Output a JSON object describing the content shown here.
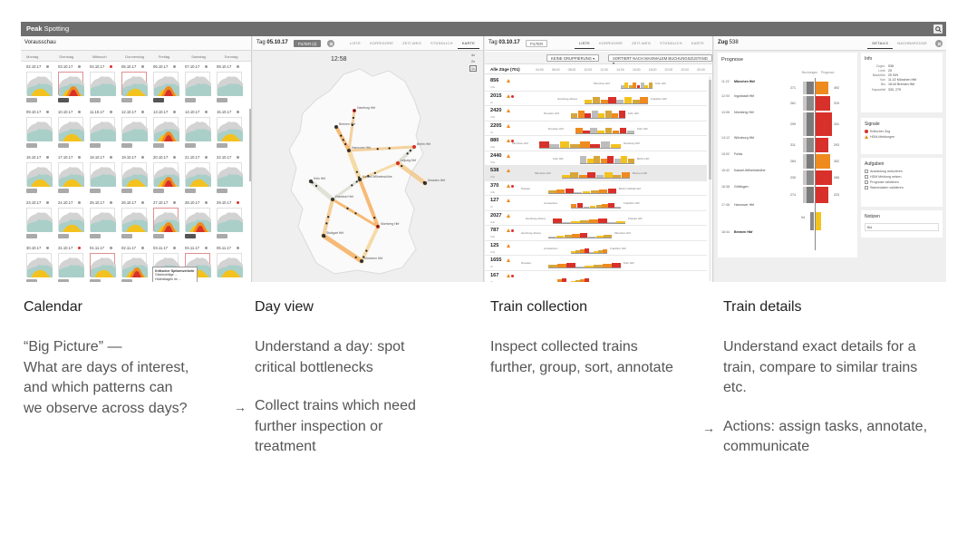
{
  "app": {
    "brand_bold": "Peak",
    "brand_rest": " Spotting"
  },
  "calendar": {
    "title": "Vorausschau",
    "weekdays": [
      "Montag",
      "Dienstag",
      "Mittwoch",
      "Donnerstag",
      "Freitag",
      "Samstag",
      "Sonntag"
    ],
    "weeks": [
      [
        "02.10.17",
        "03.10.17",
        "04.10.17",
        "05.10.17",
        "06.10.17",
        "07.10.17",
        "08.10.17"
      ],
      [
        "09.10.17",
        "10.10.17",
        "11.10.17",
        "12.10.17",
        "13.10.17",
        "14.10.17",
        "15.10.17"
      ],
      [
        "16.10.17",
        "17.10.17",
        "18.10.17",
        "19.10.17",
        "20.10.17",
        "21.10.17",
        "22.10.17"
      ],
      [
        "23.10.17",
        "24.10.17",
        "25.10.17",
        "26.10.17",
        "27.10.17",
        "28.10.17",
        "29.10.17"
      ],
      [
        "30.10.17",
        "31.10.17",
        "01.11.17",
        "02.11.17",
        "03.11.17",
        "04.11.17",
        "05.11.17"
      ]
    ],
    "tooltip_title": "Kritischer Spitzenverkehr",
    "tooltip_body": "Gleichzeitige ... Höchstlagen im ..."
  },
  "day_view": {
    "title_prefix": "Tag",
    "date": "05.10.17",
    "filter_label": "FILTER (2)",
    "tabs": [
      "LISTE",
      "KORRIDORE",
      "ZEIT-WEG",
      "STÜNDLICH",
      "KARTE"
    ],
    "active_tab": "KARTE",
    "time": "12:58",
    "zoom": [
      "4x",
      "2x",
      "1x"
    ],
    "cities": [
      "Hamburg Hbf",
      "Bremen Hbf",
      "Hannover Hbf",
      "Berlin Hbf",
      "Köln Hbf",
      "Frankfurt Hbf",
      "Nürnberg Hbf",
      "München Hbf",
      "Dresden Hbf",
      "Leipzig Hbf",
      "Stuttgart Hbf",
      "Kassel-Wilhelmshöhe"
    ]
  },
  "collection": {
    "title_prefix": "Tag",
    "date": "03.10.17",
    "filter_label": "FILTER",
    "tabs": [
      "LISTE",
      "KORRIDORE",
      "ZEIT-WEG",
      "STÜNDLICH",
      "KARTE"
    ],
    "active_tab": "LISTE",
    "group_label": "KEINE GRUPPIERUNG ▾",
    "sort_label": "SORTIERT NACH MAXIMALEM BUCHUNGSZUSTAND ▾",
    "all_label": "Alle Züge (701)",
    "axis": [
      "04:00",
      "06:00",
      "08:00",
      "10:00",
      "12:00",
      "14:00",
      "16:00",
      "18:00",
      "20:00",
      "22:00",
      "00:00"
    ],
    "trains": [
      {
        "no": "856",
        "sub": "ICE",
        "from": "München Hbf",
        "to": "Köln Hbf"
      },
      {
        "no": "2015",
        "sub": "IC",
        "from": "Hamburg-Altona",
        "to": "Frankfurt Hbf"
      },
      {
        "no": "2420",
        "sub": "ICE",
        "from": "Dresden Hbf",
        "to": "Köln Hbf"
      },
      {
        "no": "2205",
        "sub": "IC",
        "from": "Dresden Hbf",
        "to": "Köln Hbf"
      },
      {
        "no": "880",
        "sub": "ICE",
        "from": "München Hbf",
        "to": "Hamburg Hbf"
      },
      {
        "no": "2440",
        "sub": "ICE",
        "from": "Köln Hbf",
        "to": "Berlin Hbf"
      },
      {
        "no": "538",
        "sub": "ICE",
        "from": "München Hbf",
        "to": "Bremen Hbf"
      },
      {
        "no": "370",
        "sub": "ICE",
        "from": "Passau",
        "to": "Berlin Ostbahnhof"
      },
      {
        "no": "127",
        "sub": "IC",
        "from": "Amsterdam",
        "to": "Frankfurt Hbf"
      },
      {
        "no": "2027",
        "sub": "ICE",
        "from": "Hamburg-Altona",
        "to": "Passau Hbf"
      },
      {
        "no": "787",
        "sub": "ICE",
        "from": "Hamburg-Altona",
        "to": "München Hbf"
      },
      {
        "no": "125",
        "sub": "ICE",
        "from": "Amsterdam",
        "to": "Frankfurt Hbf"
      },
      {
        "no": "1655",
        "sub": "IC",
        "from": "Dresden",
        "to": "Köln Hbf"
      },
      {
        "no": "167",
        "sub": "IC",
        "from": "",
        "to": ""
      }
    ]
  },
  "details": {
    "title_prefix": "Zug",
    "train": "538",
    "tabs": [
      "DETAILS",
      "NACHBARZÜGE"
    ],
    "active_tab": "DETAILS",
    "prognose": "Prognose",
    "legend_left": "Buchungen",
    "legend_right": "Prognose",
    "stations": [
      {
        "t": "11:22",
        "name": "München Hbf",
        "bold": true
      },
      {
        "t": "12:00",
        "name": "Ingolstadt Hbf",
        "bold": false
      },
      {
        "t": "13:06",
        "name": "Nürnberg Hbf",
        "bold": false
      },
      {
        "t": "14:12",
        "name": "Würzburg Hbf",
        "bold": false
      },
      {
        "t": "15:02",
        "name": "Fulda",
        "bold": false
      },
      {
        "t": "15:42",
        "name": "Kassel-Wilhelmshöhe",
        "bold": false
      },
      {
        "t": "16:38",
        "name": "Göttingen",
        "bold": false
      },
      {
        "t": "17:46",
        "name": "Hannover Hbf",
        "bold": false
      },
      {
        "t": "18:44",
        "name": "Bremen Hbf",
        "bold": true
      }
    ],
    "left_nums": [
      "271",
      "261",
      "299",
      "311",
      "284",
      "230",
      "274",
      "94"
    ],
    "right_nums": [
      "492",
      "319",
      "341",
      "293",
      "302",
      "266",
      "223"
    ],
    "info_title": "Info",
    "info": [
      {
        "k": "Zugnr.",
        "v": "538"
      },
      {
        "k": "Linie",
        "v": "25"
      },
      {
        "k": "Bauteihe",
        "v": "25 S/N"
      },
      {
        "k": "Von",
        "v": "11:22 München Hbf"
      },
      {
        "k": "Bis",
        "v": "18:44 Bremen Hbf"
      },
      {
        "k": "Kapazität",
        "v": "330, 275"
      }
    ],
    "signals_title": "Signale",
    "signals": [
      "Kritischer Zug",
      "HDM-Meldungen"
    ],
    "tasks_title": "Aufgaben",
    "tasks": [
      "Auslastung reduzieren",
      "HDM Meldung setzen",
      "Prognose validieren",
      "Stammdaten validieren"
    ],
    "notes_title": "Notizen",
    "notes_value": "Bid"
  },
  "captions": [
    {
      "title": "Calendar",
      "lines": [
        "“Big Picture” —",
        "What are days of interest,",
        "and which patterns can",
        "we observe across days?"
      ],
      "lines2": []
    },
    {
      "title": "Day view",
      "lines": [
        "Understand a day: spot",
        "critical bottlenecks"
      ],
      "lines2": [
        "Collect trains which need",
        "further inspection or",
        "treatment"
      ]
    },
    {
      "title": "Train collection",
      "lines": [
        "Inspect collected trains",
        "further, group, sort, annotate"
      ],
      "lines2": []
    },
    {
      "title": "Train details",
      "lines": [
        "Understand exact details for a",
        "train, compare to similar trains",
        "etc."
      ],
      "lines2": [
        "Actions: assign tasks, annotate,",
        "communicate"
      ]
    }
  ],
  "arrow": "→",
  "colors": {
    "red": "#d8302a",
    "orange": "#ef8a1f",
    "yellow": "#f4c21f",
    "grey": "#9a9a9a"
  }
}
